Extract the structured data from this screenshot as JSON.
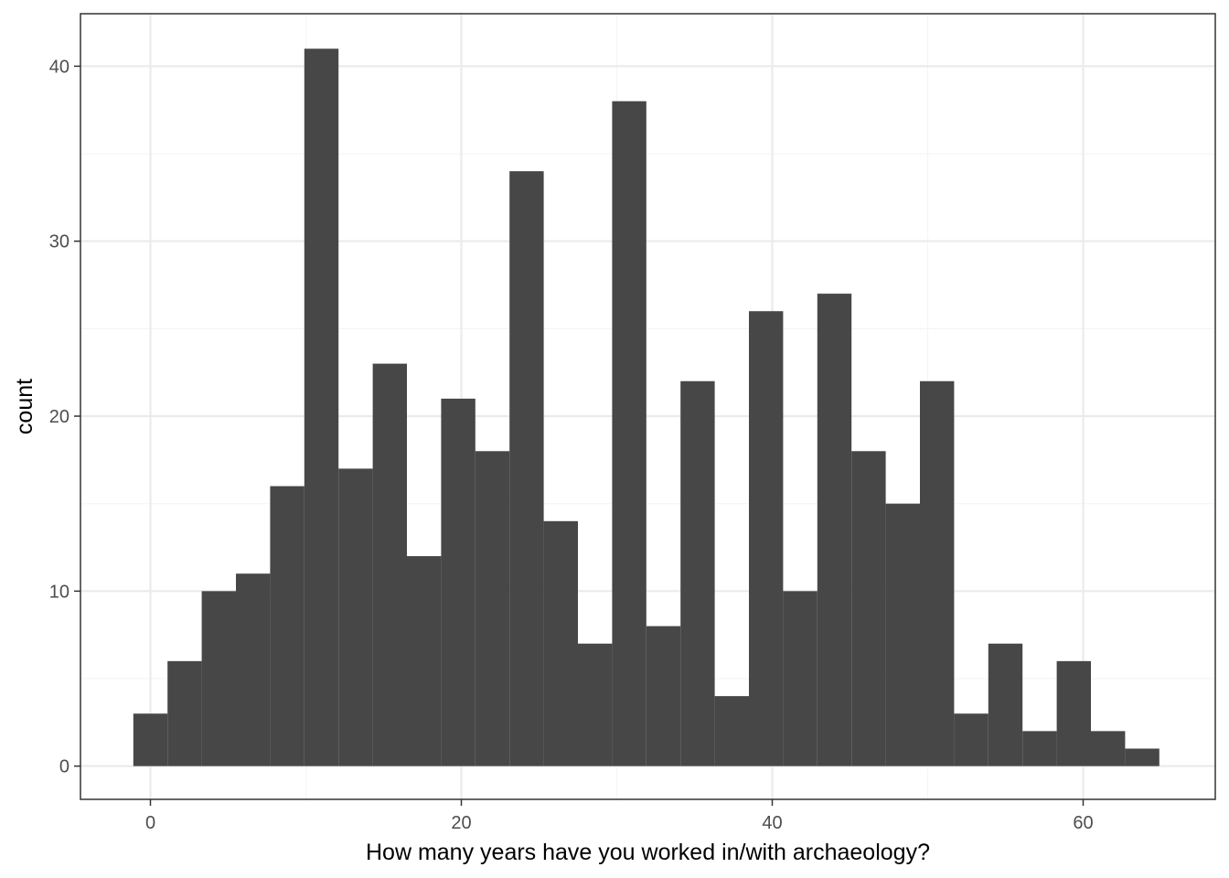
{
  "chart_data": {
    "type": "bar",
    "subtype": "histogram",
    "xlabel": "How many years have you worked in/with archaeology?",
    "ylabel": "count",
    "xlim": [
      -4.5,
      68.5
    ],
    "ylim": [
      -1.9,
      43.0
    ],
    "x_ticks": [
      0,
      20,
      40,
      60
    ],
    "y_ticks": [
      0,
      10,
      20,
      30,
      40
    ],
    "x_tick_labels": [
      "0",
      "20",
      "40",
      "60"
    ],
    "y_tick_labels": [
      "0",
      "10",
      "20",
      "30",
      "40"
    ],
    "bin_width": 2.2,
    "bins": [
      {
        "x0": -1.1,
        "x1": 1.1,
        "count": 3
      },
      {
        "x0": 1.1,
        "x1": 3.3,
        "count": 6
      },
      {
        "x0": 3.3,
        "x1": 5.5,
        "count": 10
      },
      {
        "x0": 5.5,
        "x1": 7.7,
        "count": 11
      },
      {
        "x0": 7.7,
        "x1": 9.9,
        "count": 16
      },
      {
        "x0": 9.9,
        "x1": 12.1,
        "count": 41
      },
      {
        "x0": 12.1,
        "x1": 14.3,
        "count": 17
      },
      {
        "x0": 14.3,
        "x1": 16.5,
        "count": 23
      },
      {
        "x0": 16.5,
        "x1": 18.7,
        "count": 12
      },
      {
        "x0": 18.7,
        "x1": 20.9,
        "count": 21
      },
      {
        "x0": 20.9,
        "x1": 23.1,
        "count": 18
      },
      {
        "x0": 23.1,
        "x1": 25.3,
        "count": 34
      },
      {
        "x0": 25.3,
        "x1": 27.5,
        "count": 14
      },
      {
        "x0": 27.5,
        "x1": 29.7,
        "count": 7
      },
      {
        "x0": 29.7,
        "x1": 31.9,
        "count": 38
      },
      {
        "x0": 31.9,
        "x1": 34.1,
        "count": 8
      },
      {
        "x0": 34.1,
        "x1": 36.3,
        "count": 22
      },
      {
        "x0": 36.3,
        "x1": 38.5,
        "count": 4
      },
      {
        "x0": 38.5,
        "x1": 40.7,
        "count": 26
      },
      {
        "x0": 40.7,
        "x1": 42.9,
        "count": 10
      },
      {
        "x0": 42.9,
        "x1": 45.1,
        "count": 27
      },
      {
        "x0": 45.1,
        "x1": 47.3,
        "count": 18
      },
      {
        "x0": 47.3,
        "x1": 49.5,
        "count": 15
      },
      {
        "x0": 49.5,
        "x1": 51.7,
        "count": 22
      },
      {
        "x0": 51.7,
        "x1": 53.9,
        "count": 3
      },
      {
        "x0": 53.9,
        "x1": 56.1,
        "count": 7
      },
      {
        "x0": 56.1,
        "x1": 58.3,
        "count": 2
      },
      {
        "x0": 58.3,
        "x1": 60.5,
        "count": 6
      },
      {
        "x0": 60.5,
        "x1": 62.7,
        "count": 2
      },
      {
        "x0": 62.7,
        "x1": 64.9,
        "count": 1
      }
    ],
    "grid": true,
    "colors": {
      "bar": "#474747",
      "grid_major": "#ebebeb",
      "grid_minor": "#f5f5f5",
      "panel_border": "#333333",
      "tick_label": "#4d4d4d"
    }
  }
}
